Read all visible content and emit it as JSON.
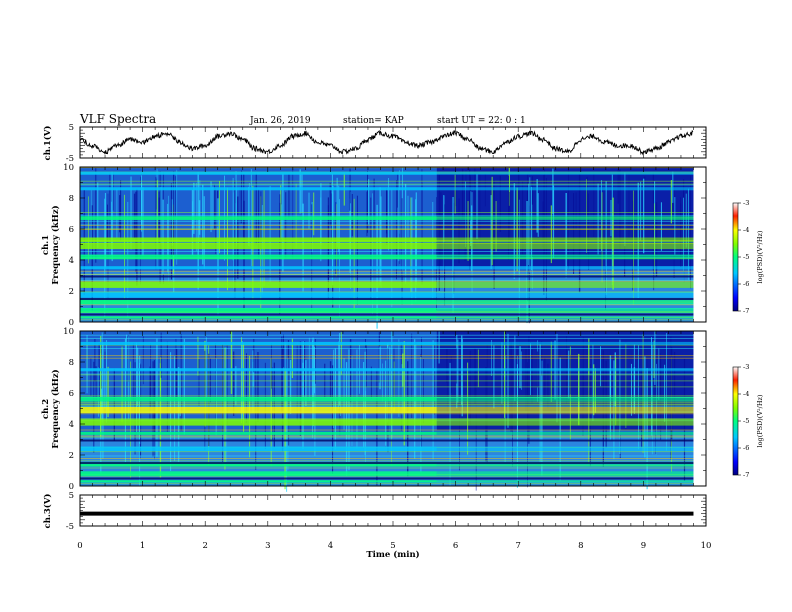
{
  "header": {
    "title": "VLF Spectra",
    "date": "Jan. 26, 2019",
    "station": "station= KAP",
    "start_ut": "start UT =  22: 0  : 1"
  },
  "colorbar": {
    "label": "log(PSD)(V²/Hz)",
    "ticks": [
      "-3",
      "-4",
      "-5",
      "-6",
      "-7"
    ],
    "range": [
      -7,
      -3
    ],
    "colormap": [
      "#000080",
      "#0000ff",
      "#00c8ff",
      "#00ff80",
      "#80ff00",
      "#ffff00",
      "#ff2000",
      "#ffffff"
    ]
  },
  "chart_data": [
    {
      "type": "axis",
      "xlabel": "Time (min)",
      "xlim": [
        0,
        10
      ],
      "xticks": [
        "0",
        "1",
        "2",
        "3",
        "4",
        "5",
        "6",
        "7",
        "8",
        "9",
        "10"
      ]
    },
    {
      "type": "line",
      "ylabel": "ch.1(V)",
      "ylim": [
        -5,
        5
      ],
      "ylim_labels": [
        "-5",
        "5"
      ],
      "data_end_min": 9.8,
      "series": [
        {
          "x": [
            0,
            0.2,
            0.4,
            0.6,
            0.8,
            1.0,
            1.2,
            1.4,
            1.6,
            1.8,
            2.0,
            2.2,
            2.4,
            2.6,
            2.8,
            3.0,
            3.2,
            3.4,
            3.6,
            3.8,
            4.0,
            4.2,
            4.4,
            4.6,
            4.8,
            5.0,
            5.2,
            5.4,
            5.6,
            5.8,
            6.0,
            6.2,
            6.4,
            6.6,
            6.8,
            7.0,
            7.2,
            7.4,
            7.6,
            7.8,
            8.0,
            8.2,
            8.4,
            8.6,
            8.8,
            9.0,
            9.2,
            9.4,
            9.6,
            9.8
          ],
          "y": [
            1,
            -1,
            -3,
            -1,
            1,
            0,
            2,
            3,
            0,
            -2,
            -1,
            2,
            3,
            1,
            -2,
            -3,
            -1,
            2,
            3,
            0,
            -1,
            -3,
            -2,
            1,
            3,
            2,
            0,
            -1,
            0,
            2,
            3,
            1,
            -2,
            -3,
            0,
            2,
            3,
            1,
            -2,
            -3,
            1,
            2,
            0,
            -1,
            -1,
            -3,
            -2,
            0,
            2,
            3
          ]
        }
      ]
    },
    {
      "type": "heatmap",
      "ylabel_channel": "ch.1",
      "ylabel": "Frequency (kHz)",
      "ylim": [
        0,
        10
      ],
      "yticks": [
        "0",
        "2",
        "4",
        "6",
        "8",
        "10"
      ],
      "data_end_min": 9.8,
      "change_time_min": 5.7,
      "colorbar": "log(PSD)(V²/Hz)",
      "bands": [
        {
          "freq_khz": 0.3,
          "width_khz": 0.15,
          "level": -5.2
        },
        {
          "freq_khz": 0.75,
          "width_khz": 0.3,
          "level": -5.5
        },
        {
          "freq_khz": 1.3,
          "width_khz": 0.3,
          "level": -5.5
        },
        {
          "freq_khz": 1.75,
          "width_khz": 0.35,
          "level": -5.6
        },
        {
          "freq_khz": 2.4,
          "width_khz": 0.4,
          "level": -4.8
        },
        {
          "freq_khz": 3.5,
          "width_khz": 0.2,
          "level": -5.6
        },
        {
          "freq_khz": 4.2,
          "width_khz": 0.3,
          "level": -5.3
        },
        {
          "freq_khz": 4.9,
          "width_khz": 0.4,
          "level": -4.6
        },
        {
          "freq_khz": 5.3,
          "width_khz": 0.3,
          "level": -4.9
        },
        {
          "freq_khz": 6.7,
          "width_khz": 0.25,
          "level": -5.5
        },
        {
          "freq_khz": 8.6,
          "width_khz": 0.2,
          "level": -5.6
        },
        {
          "freq_khz": 9.6,
          "width_khz": 0.2,
          "level": -5.6
        }
      ]
    },
    {
      "type": "heatmap",
      "ylabel_channel": "ch.2",
      "ylabel": "Frequency (kHz)",
      "ylim": [
        0,
        10
      ],
      "yticks": [
        "0",
        "2",
        "4",
        "6",
        "8",
        "10"
      ],
      "data_end_min": 9.8,
      "change_time_min": 5.7,
      "colorbar": "log(PSD)(V²/Hz)",
      "bands": [
        {
          "freq_khz": 0.3,
          "width_khz": 0.15,
          "level": -5.2
        },
        {
          "freq_khz": 0.8,
          "width_khz": 0.3,
          "level": -5.4
        },
        {
          "freq_khz": 1.4,
          "width_khz": 0.3,
          "level": -5.5
        },
        {
          "freq_khz": 2.4,
          "width_khz": 0.3,
          "level": -5.6
        },
        {
          "freq_khz": 3.4,
          "width_khz": 0.2,
          "level": -5.4
        },
        {
          "freq_khz": 4.1,
          "width_khz": 0.4,
          "level": -5.0
        },
        {
          "freq_khz": 4.9,
          "width_khz": 0.4,
          "level": -4.4
        },
        {
          "freq_khz": 5.6,
          "width_khz": 0.3,
          "level": -5.2
        },
        {
          "freq_khz": 7.5,
          "width_khz": 0.2,
          "level": -5.6
        },
        {
          "freq_khz": 9.2,
          "width_khz": 0.2,
          "level": -5.6
        }
      ]
    },
    {
      "type": "line",
      "ylabel": "ch.3(V)",
      "xlabel": "Time (min)",
      "ylim": [
        -5,
        5
      ],
      "ylim_labels": [
        "-5",
        "5"
      ],
      "data_end_min": 9.8,
      "series": [
        {
          "x": [
            0,
            9.8
          ],
          "y": [
            -1,
            -1
          ]
        }
      ]
    }
  ]
}
